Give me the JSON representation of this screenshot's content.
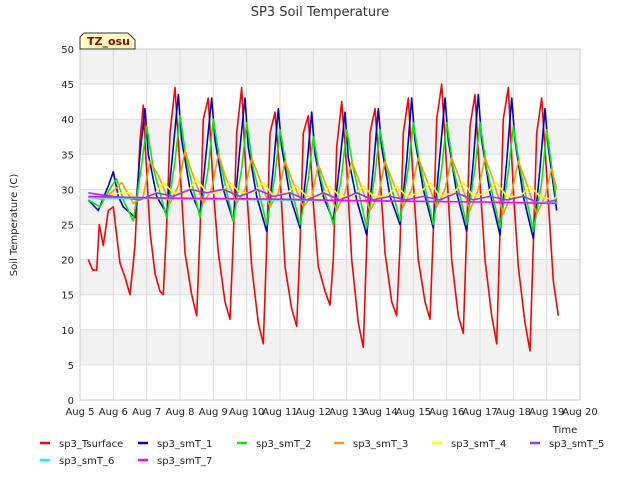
{
  "chart_data": {
    "type": "line",
    "title": "SP3 Soil Temperature",
    "xlabel": "Time",
    "ylabel": "Soil Temperature (C)",
    "annotation": "TZ_osu",
    "xlim": [
      "Aug 5",
      "Aug 20"
    ],
    "ylim": [
      0,
      50
    ],
    "x_ticks": [
      "Aug 5",
      "Aug 6",
      "Aug 7",
      "Aug 8",
      "Aug 9",
      "Aug 10",
      "Aug 11",
      "Aug 12",
      "Aug 13",
      "Aug 14",
      "Aug 15",
      "Aug 16",
      "Aug 17",
      "Aug 18",
      "Aug 19",
      "Aug 20"
    ],
    "y_ticks": [
      0,
      5,
      10,
      15,
      20,
      25,
      30,
      35,
      40,
      45,
      50
    ],
    "grid": true,
    "legend_position": "bottom",
    "series": [
      {
        "name": "sp3_Tsurface",
        "color": "#ff0000",
        "x_days": [
          5.25,
          5.38,
          5.5,
          5.58,
          5.7,
          5.85,
          6.0,
          6.2,
          6.35,
          6.5,
          6.65,
          6.8,
          6.9,
          6.97,
          7.1,
          7.25,
          7.4,
          7.5,
          7.6,
          7.7,
          7.85,
          8.0,
          8.15,
          8.35,
          8.5,
          8.6,
          8.7,
          8.85,
          9.0,
          9.15,
          9.35,
          9.5,
          9.6,
          9.7,
          9.85,
          10.0,
          10.15,
          10.35,
          10.5,
          10.6,
          10.7,
          10.85,
          11.0,
          11.15,
          11.35,
          11.5,
          11.6,
          11.7,
          11.85,
          12.0,
          12.15,
          12.35,
          12.5,
          12.6,
          12.7,
          12.85,
          13.0,
          13.15,
          13.35,
          13.5,
          13.6,
          13.7,
          13.85,
          14.0,
          14.15,
          14.35,
          14.5,
          14.6,
          14.7,
          14.85,
          15.0,
          15.15,
          15.35,
          15.5,
          15.6,
          15.7,
          15.85,
          16.0,
          16.15,
          16.35,
          16.5,
          16.6,
          16.7,
          16.85,
          17.0,
          17.15,
          17.35,
          17.5,
          17.6,
          17.7,
          17.85,
          18.0,
          18.15,
          18.35,
          18.5,
          18.6,
          18.7,
          18.85,
          19.0,
          19.2,
          19.35
        ],
        "values": [
          20.0,
          18.5,
          18.5,
          25.0,
          22.0,
          27.0,
          27.5,
          19.5,
          17.5,
          15.0,
          22.0,
          37.0,
          42.0,
          35.0,
          24.0,
          18.0,
          15.5,
          15.0,
          25.0,
          38.0,
          44.5,
          33.0,
          21.0,
          15.0,
          12.0,
          24.0,
          40.0,
          43.0,
          30.0,
          21.0,
          14.0,
          11.5,
          23.0,
          38.0,
          44.5,
          30.0,
          19.0,
          11.0,
          8.0,
          22.0,
          38.0,
          41.0,
          32.0,
          19.0,
          13.0,
          10.5,
          22.0,
          38.0,
          40.5,
          28.0,
          19.0,
          15.5,
          13.5,
          20.0,
          36.0,
          42.5,
          33.0,
          20.0,
          11.0,
          7.5,
          22.0,
          38.0,
          41.5,
          32.0,
          21.0,
          14.0,
          12.0,
          22.0,
          38.0,
          43.0,
          31.0,
          20.0,
          14.0,
          11.5,
          24.0,
          40.0,
          45.0,
          33.0,
          20.0,
          12.0,
          9.5,
          24.0,
          39.0,
          43.5,
          31.0,
          20.0,
          12.0,
          8.0,
          24.0,
          40.0,
          44.5,
          30.0,
          19.0,
          11.0,
          7.0,
          22.0,
          38.0,
          43.0,
          32.0,
          17.0,
          12.0
        ]
      },
      {
        "name": "sp3_smT_1",
        "color": "#0000cc",
        "x_days": [
          5.25,
          5.55,
          5.85,
          6.0,
          6.15,
          6.3,
          6.65,
          6.8,
          6.95,
          7.05,
          7.3,
          7.6,
          7.8,
          7.95,
          8.05,
          8.3,
          8.6,
          8.8,
          8.95,
          9.05,
          9.3,
          9.6,
          9.8,
          9.95,
          10.05,
          10.3,
          10.6,
          10.8,
          10.95,
          11.05,
          11.3,
          11.6,
          11.8,
          11.95,
          12.05,
          12.3,
          12.6,
          12.8,
          12.95,
          13.05,
          13.3,
          13.6,
          13.8,
          13.95,
          14.05,
          14.3,
          14.6,
          14.8,
          14.95,
          15.05,
          15.3,
          15.6,
          15.8,
          15.95,
          16.05,
          16.3,
          16.6,
          16.8,
          16.95,
          17.05,
          17.3,
          17.6,
          17.8,
          17.95,
          18.05,
          18.3,
          18.6,
          18.8,
          18.95,
          19.05,
          19.3
        ],
        "values": [
          28.5,
          27.0,
          30.5,
          32.5,
          29.0,
          27.5,
          26.0,
          35.0,
          41.5,
          35.0,
          29.0,
          26.5,
          36.0,
          43.5,
          37.0,
          30.0,
          26.5,
          36.0,
          43.0,
          37.0,
          30.0,
          25.5,
          36.0,
          43.0,
          36.0,
          29.0,
          24.0,
          33.0,
          41.5,
          36.0,
          29.0,
          24.5,
          33.0,
          41.0,
          35.0,
          29.0,
          25.5,
          34.0,
          41.0,
          34.5,
          28.5,
          23.5,
          33.0,
          41.5,
          36.0,
          29.0,
          25.0,
          34.0,
          43.0,
          37.0,
          30.0,
          24.5,
          35.0,
          43.0,
          37.0,
          29.5,
          24.0,
          34.0,
          43.5,
          37.0,
          29.5,
          23.5,
          34.0,
          43.0,
          37.0,
          29.0,
          23.0,
          33.0,
          41.5,
          36.0,
          27.0
        ]
      },
      {
        "name": "sp3_smT_2",
        "color": "#00ee00",
        "x_days": [
          5.25,
          5.6,
          5.95,
          6.1,
          6.3,
          6.6,
          6.85,
          7.0,
          7.2,
          7.6,
          7.85,
          8.0,
          8.2,
          8.6,
          8.85,
          9.0,
          9.2,
          9.6,
          9.85,
          10.0,
          10.2,
          10.6,
          10.85,
          11.0,
          11.2,
          11.6,
          11.85,
          12.0,
          12.2,
          12.6,
          12.85,
          13.0,
          13.2,
          13.6,
          13.85,
          14.0,
          14.2,
          14.6,
          14.85,
          15.0,
          15.2,
          15.6,
          15.85,
          16.0,
          16.2,
          16.6,
          16.85,
          17.0,
          17.2,
          17.6,
          17.85,
          18.0,
          18.2,
          18.6,
          18.85,
          19.0,
          19.3
        ],
        "values": [
          28.5,
          27.5,
          30.5,
          31.5,
          28.5,
          25.5,
          33.5,
          39.0,
          33.0,
          26.0,
          34.0,
          40.5,
          34.0,
          26.0,
          33.0,
          40.0,
          34.0,
          25.5,
          33.0,
          39.5,
          33.0,
          25.0,
          32.0,
          38.5,
          33.0,
          25.0,
          31.5,
          37.5,
          32.0,
          25.0,
          32.0,
          38.5,
          33.0,
          24.5,
          32.0,
          38.5,
          33.0,
          25.5,
          33.0,
          39.5,
          33.5,
          25.0,
          33.0,
          39.5,
          33.0,
          25.0,
          33.0,
          39.5,
          33.0,
          24.5,
          32.5,
          39.0,
          33.0,
          24.0,
          31.0,
          38.5,
          28.0
        ]
      },
      {
        "name": "sp3_smT_3",
        "color": "#ff9900",
        "x_days": [
          5.25,
          5.7,
          6.05,
          6.25,
          6.6,
          6.9,
          7.1,
          7.35,
          7.7,
          7.95,
          8.15,
          8.35,
          8.7,
          8.95,
          9.15,
          9.35,
          9.7,
          9.95,
          10.15,
          10.35,
          10.7,
          10.95,
          11.15,
          11.35,
          11.7,
          11.95,
          12.15,
          12.35,
          12.7,
          12.95,
          13.15,
          13.35,
          13.7,
          13.95,
          14.15,
          14.35,
          14.7,
          14.95,
          15.15,
          15.35,
          15.7,
          15.95,
          16.15,
          16.35,
          16.7,
          16.95,
          17.15,
          17.35,
          17.7,
          17.95,
          18.15,
          18.35,
          18.7,
          18.95,
          19.15,
          19.3
        ],
        "values": [
          29.0,
          28.5,
          30.0,
          31.0,
          28.0,
          29.0,
          34.0,
          32.0,
          28.0,
          30.5,
          35.5,
          32.5,
          28.0,
          30.0,
          35.0,
          32.0,
          28.0,
          30.0,
          34.5,
          32.0,
          27.5,
          29.5,
          34.0,
          31.5,
          27.5,
          29.0,
          33.5,
          31.0,
          27.0,
          29.5,
          34.0,
          31.5,
          27.0,
          29.0,
          34.0,
          31.5,
          27.5,
          30.0,
          34.5,
          32.0,
          27.5,
          30.0,
          34.5,
          32.0,
          27.0,
          30.0,
          34.5,
          32.0,
          26.5,
          29.5,
          34.0,
          31.5,
          26.5,
          29.0,
          33.0,
          30.0
        ]
      },
      {
        "name": "sp3_smT_4",
        "color": "#ffff00",
        "x_days": [
          5.25,
          5.8,
          6.2,
          6.5,
          6.8,
          7.2,
          7.5,
          7.8,
          8.2,
          8.5,
          8.8,
          9.2,
          9.5,
          9.8,
          10.2,
          10.5,
          10.8,
          11.2,
          11.5,
          11.8,
          12.2,
          12.5,
          12.8,
          13.2,
          13.5,
          13.8,
          14.2,
          14.5,
          14.8,
          15.2,
          15.5,
          15.8,
          16.2,
          16.5,
          16.8,
          17.2,
          17.5,
          17.8,
          18.2,
          18.5,
          18.8,
          19.2,
          19.3
        ],
        "values": [
          29.0,
          29.0,
          29.5,
          29.5,
          28.5,
          29.0,
          31.0,
          29.5,
          29.5,
          31.5,
          29.5,
          29.5,
          31.0,
          29.5,
          29.5,
          31.0,
          29.0,
          29.5,
          30.5,
          29.0,
          29.0,
          30.5,
          29.0,
          29.0,
          30.5,
          29.0,
          29.0,
          30.5,
          29.0,
          29.5,
          31.0,
          29.0,
          29.5,
          31.0,
          29.0,
          29.5,
          31.0,
          29.0,
          29.0,
          30.5,
          29.0,
          28.5,
          29.0
        ]
      },
      {
        "name": "sp3_smT_5",
        "color": "#9933ff",
        "x_days": [
          5.25,
          6.0,
          6.8,
          7.3,
          7.8,
          8.3,
          8.8,
          9.3,
          9.8,
          10.3,
          10.8,
          11.3,
          11.8,
          12.3,
          12.8,
          13.3,
          13.8,
          14.3,
          14.8,
          15.3,
          15.8,
          16.3,
          16.8,
          17.3,
          17.8,
          18.3,
          18.8,
          19.3
        ],
        "values": [
          29.5,
          29.0,
          28.5,
          29.5,
          29.0,
          30.0,
          29.5,
          30.0,
          29.0,
          30.0,
          29.0,
          29.5,
          28.5,
          29.5,
          28.5,
          29.5,
          28.5,
          29.0,
          28.5,
          29.0,
          28.5,
          29.5,
          28.5,
          29.0,
          28.5,
          29.0,
          28.0,
          28.5
        ]
      },
      {
        "name": "sp3_smT_6",
        "color": "#00ffff",
        "x_days": [
          5.25,
          7.0,
          9.0,
          11.0,
          13.0,
          15.0,
          17.0,
          19.3
        ],
        "values": [
          28.8,
          28.7,
          28.6,
          28.5,
          28.4,
          28.3,
          28.2,
          28.1
        ]
      },
      {
        "name": "sp3_smT_7",
        "color": "#ff00ff",
        "x_days": [
          5.25,
          7.0,
          9.0,
          11.0,
          13.0,
          15.0,
          17.0,
          19.3
        ],
        "values": [
          29.0,
          28.8,
          28.7,
          28.6,
          28.4,
          28.3,
          28.2,
          28.0
        ]
      }
    ]
  }
}
